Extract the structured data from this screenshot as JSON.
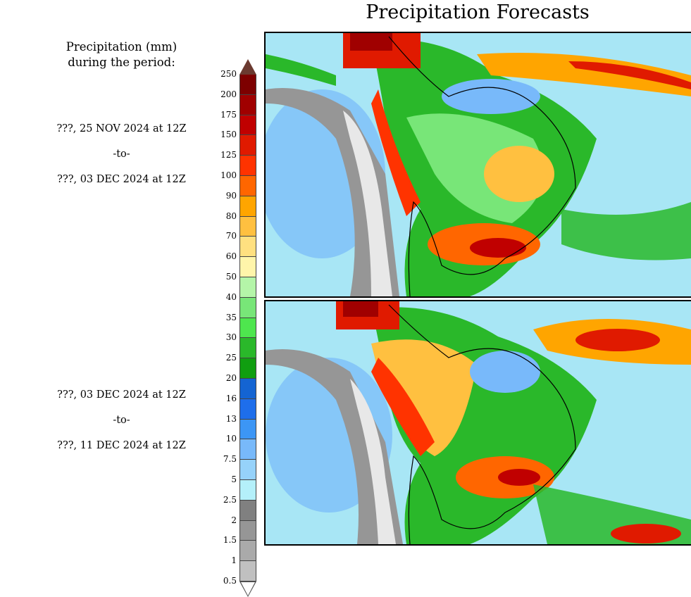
{
  "title": "Precipitation Forecasts",
  "legend_heading": [
    "Precipitation (mm)",
    "during the period:"
  ],
  "periods": [
    {
      "start": "???, 25 NOV 2024 at 12Z",
      "sep": "-to-",
      "end": "???, 03 DEC 2024 at 12Z"
    },
    {
      "start": "???, 03 DEC 2024 at 12Z",
      "sep": "-to-",
      "end": "???, 11 DEC 2024 at 12Z"
    }
  ],
  "colorbar": {
    "labels": [
      "250",
      "200",
      "175",
      "150",
      "125",
      "100",
      "90",
      "80",
      "70",
      "60",
      "50",
      "40",
      "35",
      "30",
      "25",
      "20",
      "16",
      "13",
      "10",
      "7.5",
      "5",
      "2.5",
      "2",
      "1.5",
      "1",
      "0.5"
    ],
    "colors": [
      "#7d0000",
      "#a00000",
      "#c00000",
      "#e01a00",
      "#ff3300",
      "#ff6600",
      "#ffa500",
      "#ffc040",
      "#ffe080",
      "#fff5aa",
      "#b4f5a8",
      "#78e678",
      "#4ee64e",
      "#2ab82a",
      "#109e10",
      "#1464d2",
      "#1e6eeb",
      "#3c96f5",
      "#78b9fa",
      "#96d2fa",
      "#b4f0fa",
      "#808080",
      "#969696",
      "#aaaaaa",
      "#c0c0c0"
    ],
    "over_color": "#6b3a30",
    "under_color": "#ffffff"
  }
}
